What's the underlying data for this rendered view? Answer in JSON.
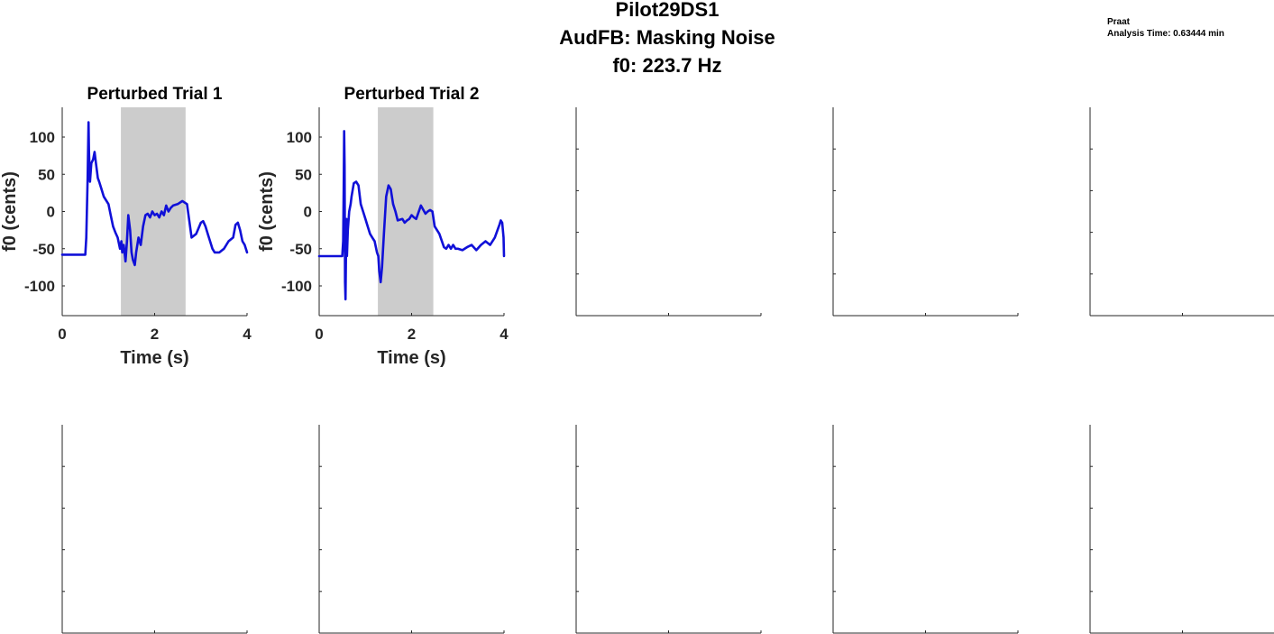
{
  "figure": {
    "title_lines": [
      "Pilot29DS1",
      "AudFB: Masking Noise",
      "f0: 223.7 Hz"
    ],
    "note_lines": [
      "Praat",
      "Analysis Time: 0.63444 min"
    ],
    "colors": {
      "trace": "#1010d8",
      "perturbation_window": "#cccccc",
      "axis": "#262626"
    }
  },
  "chart_data": [
    {
      "type": "line",
      "title": "Perturbed Trial 1",
      "xlabel": "Time (s)",
      "ylabel": "f0 (cents)",
      "xlim": [
        0,
        4
      ],
      "ylim": [
        -140,
        140
      ],
      "xticks": [
        0,
        2,
        4
      ],
      "yticks": [
        -100,
        -50,
        0,
        50,
        100
      ],
      "perturbation_window": [
        1.27,
        2.67
      ],
      "series": [
        {
          "x": [
            0,
            0.5,
            0.52,
            0.55,
            0.57,
            0.58,
            0.6,
            0.63,
            0.67,
            0.7,
            0.73,
            0.77,
            0.8,
            0.85,
            0.9,
            1.0,
            1.05,
            1.1,
            1.15,
            1.2,
            1.25,
            1.28,
            1.3,
            1.33,
            1.37,
            1.4,
            1.43,
            1.47,
            1.5,
            1.53,
            1.57,
            1.6,
            1.65,
            1.7,
            1.75,
            1.8,
            1.85,
            1.9,
            1.95,
            2.0,
            2.05,
            2.1,
            2.15,
            2.2,
            2.25,
            2.3,
            2.35,
            2.4,
            2.5,
            2.6,
            2.7,
            2.8,
            2.9,
            3.0,
            3.05,
            3.1,
            3.15,
            3.2,
            3.25,
            3.3,
            3.4,
            3.5,
            3.6,
            3.7,
            3.75,
            3.8,
            3.85,
            3.9,
            3.95,
            4.0
          ],
          "y": [
            -58,
            -58,
            -35,
            45,
            120,
            80,
            40,
            65,
            70,
            80,
            65,
            45,
            40,
            30,
            20,
            10,
            -5,
            -20,
            -28,
            -35,
            -50,
            -40,
            -55,
            -45,
            -67,
            -40,
            -5,
            -25,
            -55,
            -65,
            -72,
            -55,
            -35,
            -45,
            -20,
            -5,
            -3,
            -8,
            0,
            -5,
            -3,
            -8,
            0,
            -5,
            8,
            0,
            5,
            8,
            10,
            14,
            10,
            -35,
            -30,
            -15,
            -13,
            -20,
            -30,
            -40,
            -50,
            -55,
            -55,
            -50,
            -40,
            -35,
            -18,
            -15,
            -25,
            -40,
            -45,
            -55
          ]
        }
      ]
    },
    {
      "type": "line",
      "title": "Perturbed Trial 2",
      "xlabel": "Time (s)",
      "ylabel": "f0 (cents)",
      "xlim": [
        0,
        4
      ],
      "ylim": [
        -140,
        140
      ],
      "xticks": [
        0,
        2,
        4
      ],
      "yticks": [
        -100,
        -50,
        0,
        50,
        100
      ],
      "perturbation_window": [
        1.27,
        2.47
      ],
      "series": [
        {
          "x": [
            0,
            0.5,
            0.52,
            0.53,
            0.54,
            0.55,
            0.56,
            0.57,
            0.58,
            0.59,
            0.6,
            0.62,
            0.65,
            0.68,
            0.7,
            0.75,
            0.8,
            0.85,
            0.9,
            0.95,
            1.0,
            1.05,
            1.1,
            1.15,
            1.2,
            1.25,
            1.28,
            1.3,
            1.33,
            1.36,
            1.4,
            1.45,
            1.5,
            1.55,
            1.6,
            1.65,
            1.7,
            1.8,
            1.85,
            1.9,
            1.95,
            2.0,
            2.05,
            2.1,
            2.2,
            2.3,
            2.35,
            2.4,
            2.45,
            2.5,
            2.6,
            2.7,
            2.75,
            2.8,
            2.85,
            2.9,
            2.95,
            3.0,
            3.1,
            3.2,
            3.3,
            3.4,
            3.5,
            3.6,
            3.7,
            3.8,
            3.9,
            3.93,
            3.96,
            3.99,
            4.0
          ],
          "y": [
            -60,
            -60,
            -40,
            30,
            108,
            60,
            -95,
            -118,
            -60,
            -10,
            -60,
            -25,
            0,
            10,
            20,
            38,
            40,
            35,
            10,
            0,
            -10,
            -20,
            -30,
            -35,
            -40,
            -55,
            -60,
            -80,
            -95,
            -75,
            -30,
            20,
            35,
            30,
            10,
            0,
            -12,
            -10,
            -15,
            -12,
            -10,
            -5,
            -8,
            -10,
            8,
            -3,
            0,
            2,
            0,
            -20,
            -30,
            -48,
            -50,
            -45,
            -50,
            -45,
            -50,
            -50,
            -52,
            -48,
            -45,
            -52,
            -45,
            -40,
            -45,
            -35,
            -18,
            -12,
            -15,
            -35,
            -60
          ]
        }
      ]
    }
  ]
}
